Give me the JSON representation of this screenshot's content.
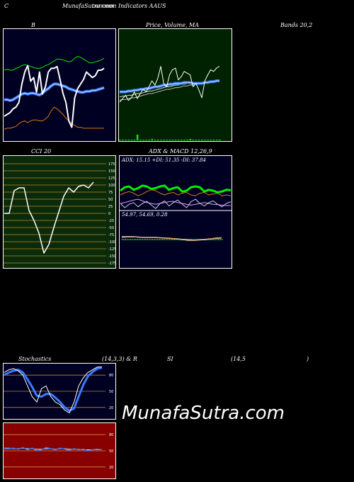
{
  "header": {
    "c": "C",
    "site": "MunafaSutra.com",
    "subtitle": "common Indicators AAUS"
  },
  "labels": {
    "b": "B",
    "price": "Price, Volume, MA",
    "bands": "Bands 20,2",
    "cci": "CCI 20",
    "adx_macd": "ADX  & MACD 12,26,9",
    "stoch": "Stochastics",
    "stoch_params": "(14,3,3) & R",
    "si": "SI",
    "rsi_params": "(14,5",
    "rsi_close": ")"
  },
  "watermark": "MunafaSutra.com",
  "colors": {
    "bollinger_bg": "#000022",
    "price_bg": "#002200",
    "cci_bg": "#0a2a0a",
    "adx_bg": "#000022",
    "stoch_bg": "#000022",
    "rsi_bg": "#880000",
    "blue": "#3a7bff",
    "green": "#00ee00",
    "orange": "#d97a10",
    "white": "#ffffff"
  },
  "chart_data": [
    {
      "type": "line",
      "name": "Bollinger Bands",
      "ylim": [
        0,
        100
      ],
      "series": [
        {
          "name": "upper",
          "values": [
            70,
            71,
            70,
            70,
            72,
            73,
            75,
            76,
            75,
            74,
            73,
            72,
            72,
            73,
            75,
            76,
            78,
            80,
            82,
            82,
            81,
            80,
            79,
            80,
            83,
            85,
            84,
            82,
            80,
            78,
            78,
            79,
            80,
            81,
            83
          ]
        },
        {
          "name": "middle",
          "values": [
            38,
            38,
            37,
            38,
            40,
            42,
            44,
            45,
            44,
            45,
            45,
            44,
            43,
            45,
            48,
            50,
            53,
            55,
            55,
            54,
            53,
            52,
            50,
            49,
            48,
            47,
            46,
            46,
            47,
            47,
            48,
            48,
            49,
            50,
            51
          ]
        },
        {
          "name": "lower",
          "values": [
            6,
            7,
            7,
            8,
            9,
            12,
            14,
            15,
            13,
            15,
            16,
            16,
            15,
            15,
            17,
            20,
            26,
            30,
            28,
            25,
            22,
            18,
            15,
            12,
            10,
            8,
            8,
            7,
            7,
            7,
            7,
            7,
            7,
            7,
            7
          ]
        },
        {
          "name": "price",
          "values": [
            20,
            22,
            24,
            28,
            30,
            35,
            55,
            68,
            75,
            58,
            62,
            46,
            68,
            44,
            52,
            68,
            72,
            72,
            74,
            60,
            45,
            35,
            15,
            8,
            40,
            50,
            55,
            60,
            68,
            65,
            62,
            64,
            70,
            70,
            72
          ]
        }
      ]
    },
    {
      "type": "line",
      "name": "Price, Volume, MA",
      "ylim": [
        0,
        100
      ],
      "series": [
        {
          "name": "price",
          "values": [
            30,
            34,
            38,
            32,
            35,
            42,
            34,
            40,
            45,
            42,
            48,
            55,
            50,
            58,
            72,
            52,
            48,
            62,
            68,
            70,
            56,
            60,
            66,
            64,
            62,
            48,
            52,
            44,
            35,
            55,
            62,
            68,
            66,
            70,
            72
          ]
        },
        {
          "name": "ma_blue",
          "values": [
            42,
            42,
            42,
            43,
            43,
            44,
            44,
            45,
            45,
            46,
            46,
            47,
            48,
            48,
            49,
            50,
            50,
            51,
            51,
            52,
            52,
            52,
            53,
            53,
            53,
            52,
            52,
            52,
            52,
            53,
            53,
            54,
            54,
            55,
            55
          ]
        },
        {
          "name": "ma_short",
          "values": [
            36,
            37,
            37,
            38,
            38,
            39,
            40,
            40,
            41,
            42,
            43,
            43,
            44,
            45,
            46,
            47,
            48,
            48,
            49,
            50,
            50,
            51,
            51,
            52,
            52,
            52,
            52,
            52,
            52,
            53,
            53,
            54,
            54,
            55,
            55
          ]
        },
        {
          "name": "ma_long",
          "values": [
            32,
            33,
            33,
            34,
            35,
            35,
            36,
            37,
            38,
            39,
            40,
            40,
            41,
            42,
            43,
            44,
            45,
            45,
            46,
            47,
            47,
            48,
            49,
            49,
            50,
            50,
            51,
            51,
            51,
            52,
            52,
            53,
            53,
            54,
            54
          ]
        },
        {
          "name": "volume",
          "values": [
            0,
            0,
            0,
            0,
            0,
            0,
            4,
            0,
            0,
            0,
            0,
            1,
            0,
            0,
            0,
            0,
            0,
            0,
            0,
            0,
            0,
            0,
            0,
            0,
            1,
            0,
            0,
            0,
            0,
            0,
            0,
            0,
            0,
            0,
            0
          ]
        }
      ]
    },
    {
      "type": "line",
      "name": "CCI 20",
      "ylim": [
        -175,
        175
      ],
      "yticks": [
        "175",
        "150",
        "125",
        "100",
        "75",
        "50",
        "25",
        "0",
        "-25",
        "-50",
        "-75",
        "-100",
        "-125",
        "-150",
        "-175"
      ],
      "series": [
        {
          "name": "cci",
          "values": [
            0,
            0,
            80,
            90,
            90,
            10,
            -25,
            -70,
            -140,
            -110,
            -50,
            5,
            60,
            90,
            75,
            95,
            100,
            90,
            110
          ]
        }
      ]
    },
    {
      "type": "line",
      "name": "ADX",
      "title": "ADX: 15.15  +DI: 51.35 -DI: 37.84",
      "ylim": [
        0,
        100
      ],
      "series": [
        {
          "name": "adx",
          "values": [
            20,
            22,
            25,
            28,
            30,
            26,
            22,
            20,
            18,
            20,
            22,
            24,
            25,
            22,
            20,
            18,
            16,
            18,
            20,
            22,
            20,
            18,
            17,
            16,
            15,
            15
          ]
        },
        {
          "name": "+di",
          "values": [
            50,
            58,
            60,
            52,
            56,
            62,
            60,
            54,
            56,
            60,
            62,
            52,
            56,
            58,
            48,
            50,
            58,
            60,
            58,
            48,
            52,
            50,
            46,
            48,
            52,
            51
          ]
        },
        {
          "name": "-di",
          "values": [
            40,
            45,
            48,
            44,
            38,
            42,
            48,
            52,
            50,
            44,
            40,
            44,
            46,
            40,
            44,
            46,
            40,
            38,
            44,
            46,
            40,
            42,
            44,
            38,
            40,
            38
          ]
        },
        {
          "name": "white",
          "values": [
            20,
            10,
            18,
            22,
            12,
            20,
            25,
            16,
            8,
            20,
            26,
            14,
            22,
            28,
            18,
            10,
            24,
            30,
            20,
            14,
            22,
            26,
            18,
            12,
            20,
            24
          ]
        }
      ]
    },
    {
      "type": "line",
      "name": "MACD",
      "title": "54.97,  54.69,  0.28",
      "ylim": [
        -10,
        10
      ],
      "series": [
        {
          "name": "macd",
          "values": [
            3,
            3,
            3,
            2.5,
            2,
            2,
            2,
            1.5,
            1,
            0.5,
            0,
            -1,
            -2,
            -2,
            -1.5,
            -1,
            0,
            1,
            1.5
          ]
        },
        {
          "name": "signal",
          "values": [
            2,
            2.5,
            2.5,
            2.5,
            2,
            2,
            2,
            1.5,
            1,
            0.5,
            0,
            -0.5,
            -1,
            -1.5,
            -1,
            -0.5,
            0,
            0.5,
            1
          ]
        },
        {
          "name": "hist",
          "values": [
            1,
            0.5,
            0.5,
            0,
            0,
            0,
            0,
            0,
            0,
            0,
            0,
            -0.5,
            -1,
            -0.5,
            -0.5,
            -0.5,
            0,
            0.5,
            0.5
          ]
        }
      ]
    },
    {
      "type": "line",
      "name": "Stochastics",
      "ylim": [
        0,
        100
      ],
      "yticks": [
        "80",
        "50",
        "20"
      ],
      "series": [
        {
          "name": "%k",
          "values": [
            85,
            90,
            92,
            88,
            80,
            60,
            40,
            30,
            55,
            60,
            40,
            30,
            25,
            15,
            10,
            30,
            60,
            75,
            85,
            90,
            95,
            95
          ]
        },
        {
          "name": "%d",
          "values": [
            80,
            85,
            88,
            90,
            85,
            72,
            58,
            42,
            40,
            45,
            45,
            38,
            30,
            20,
            14,
            18,
            40,
            62,
            78,
            86,
            92,
            94
          ]
        }
      ]
    },
    {
      "type": "line",
      "name": "RSI",
      "ylim": [
        0,
        100
      ],
      "yticks": [
        "80",
        "50",
        "20"
      ],
      "series": [
        {
          "name": "rsi",
          "values": [
            54,
            54,
            55,
            53,
            56,
            52,
            55,
            50,
            52,
            56,
            54,
            52,
            55,
            53,
            51,
            54,
            52,
            53,
            50,
            52,
            53,
            52
          ]
        },
        {
          "name": "rsi_ma",
          "values": [
            55,
            55,
            54,
            54,
            55,
            54,
            54,
            53,
            53,
            54,
            54,
            53,
            54,
            54,
            53,
            53,
            53,
            52,
            52,
            52,
            52,
            52
          ]
        }
      ]
    }
  ]
}
